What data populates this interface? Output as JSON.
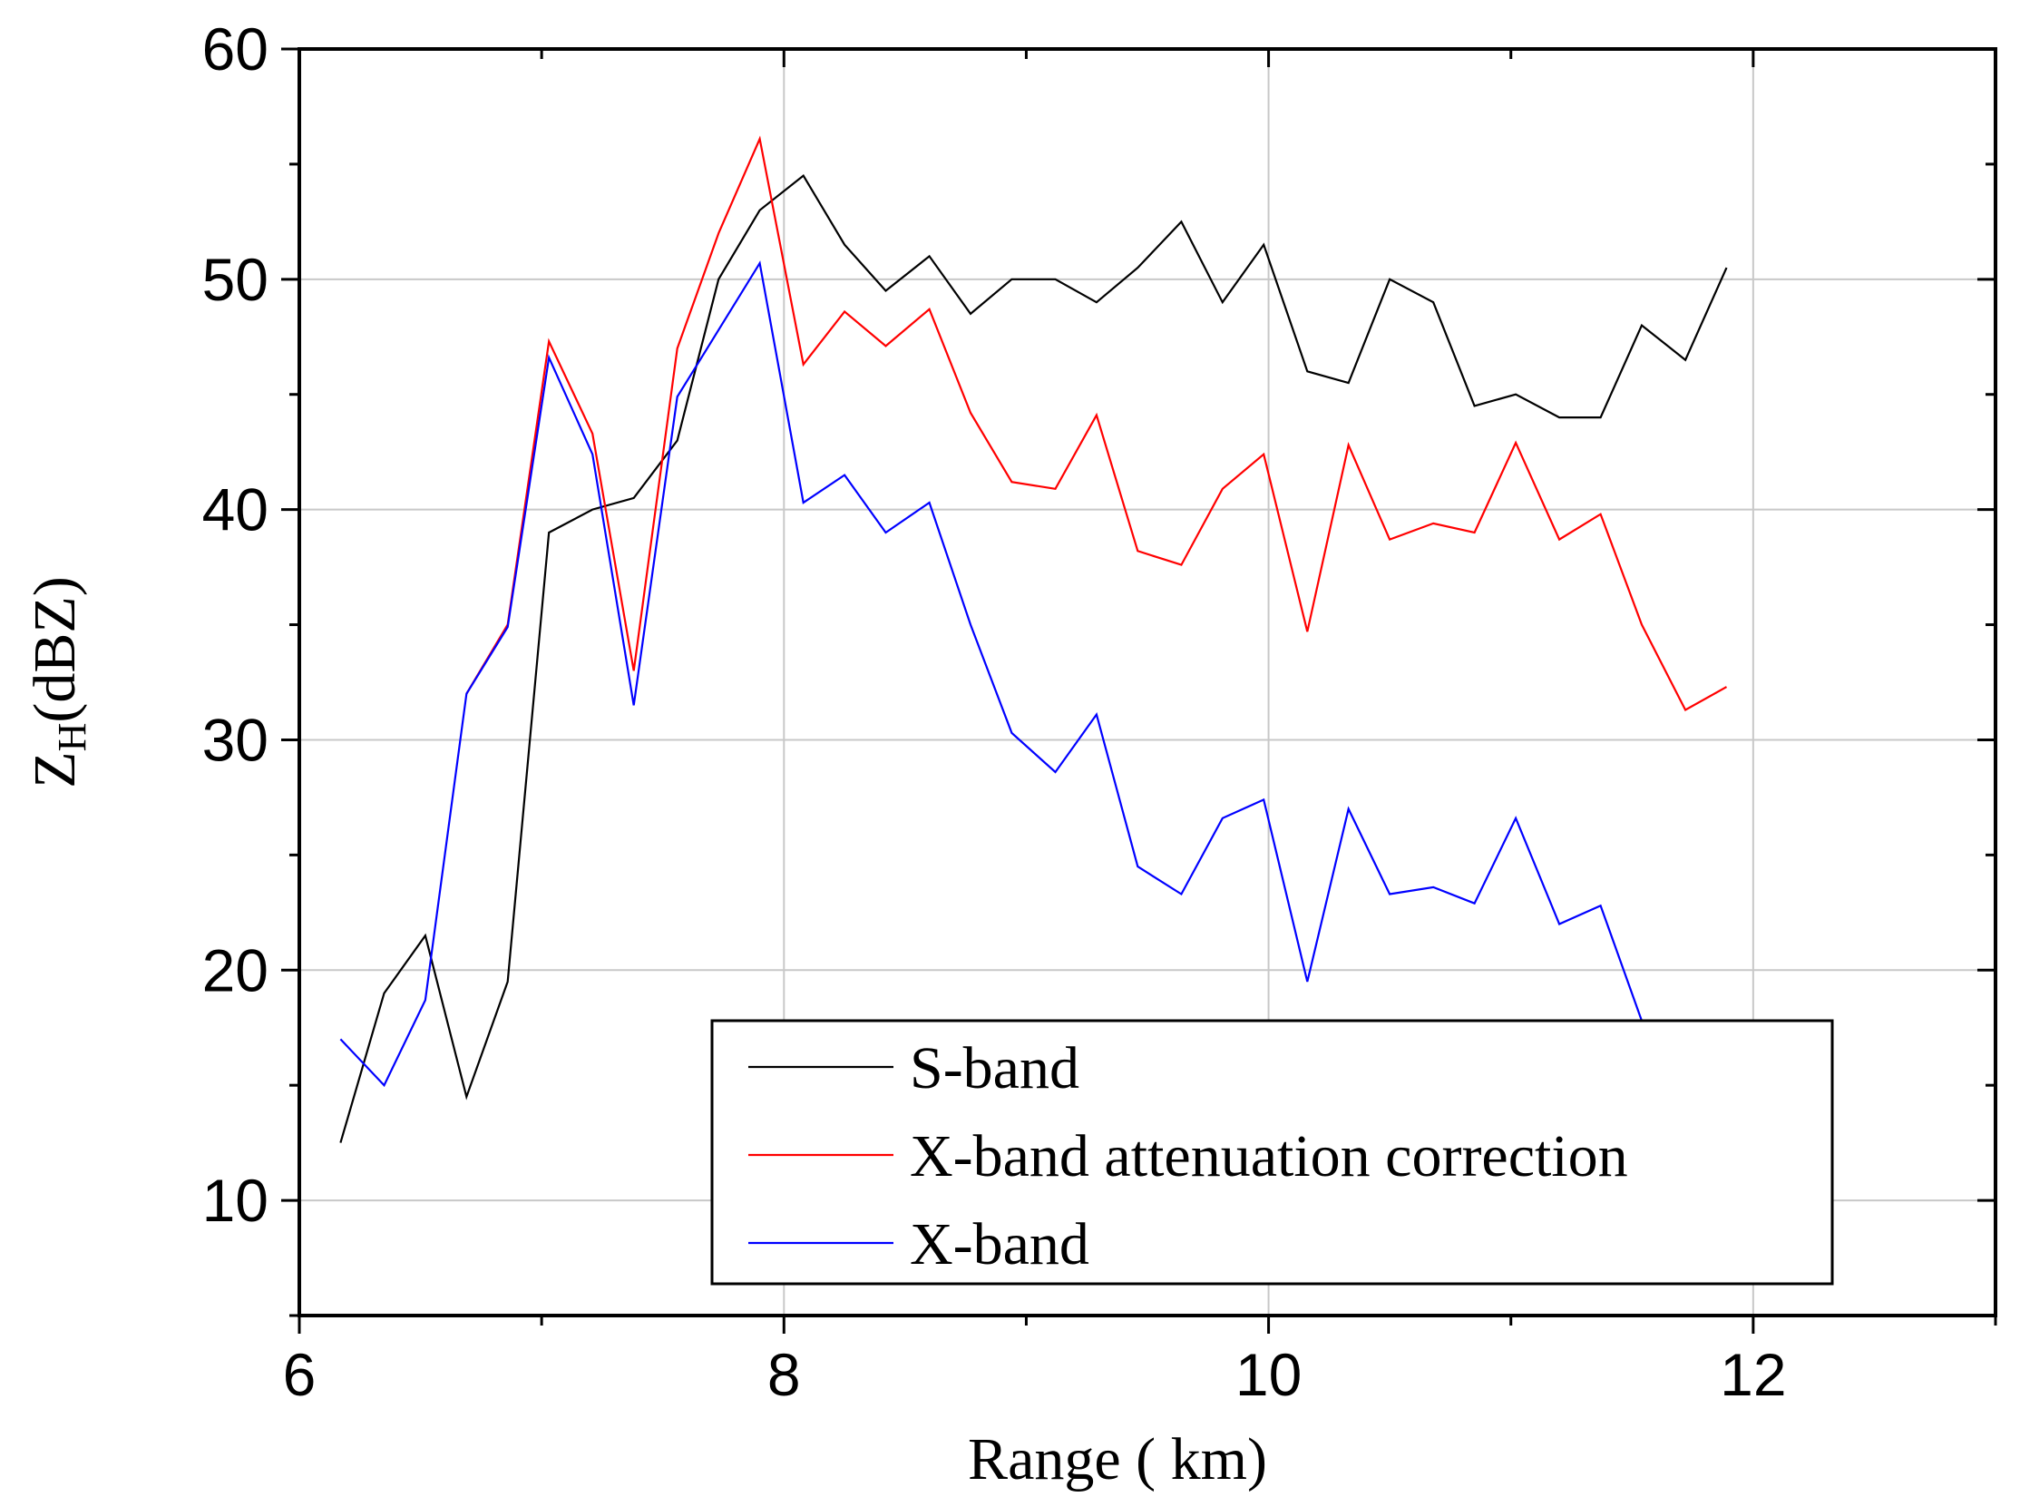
{
  "chart_data": {
    "type": "line",
    "title": "",
    "xlabel": "Range ( km)",
    "ylabel": {
      "main": "Z",
      "sub": "H",
      "unit": "(dBZ)"
    },
    "xlim": [
      6,
      13
    ],
    "ylim": [
      5,
      60
    ],
    "xticks": [
      6,
      8,
      10,
      12
    ],
    "yticks": [
      10,
      20,
      30,
      40,
      50,
      60
    ],
    "xgrid": [
      8,
      10,
      12
    ],
    "ygrid": [
      10,
      20,
      30,
      40,
      50
    ],
    "grid": true,
    "legend_position": "bottom-right",
    "series": [
      {
        "name": "S-band",
        "color": "#000000",
        "x": [
          6.17,
          6.35,
          6.52,
          6.69,
          6.86,
          7.03,
          7.21,
          7.38,
          7.56,
          7.73,
          7.9,
          8.08,
          8.25,
          8.42,
          8.6,
          8.77,
          8.94,
          9.12,
          9.29,
          9.46,
          9.64,
          9.81,
          9.98,
          10.16,
          10.33,
          10.5,
          10.68,
          10.85,
          11.02,
          11.2,
          11.37,
          11.54,
          11.72,
          11.89
        ],
        "values": [
          12.5,
          19.0,
          21.5,
          14.5,
          19.5,
          39.0,
          40.0,
          40.5,
          43.0,
          50.0,
          53.0,
          54.5,
          51.5,
          49.5,
          51.0,
          48.5,
          50.0,
          50.0,
          49.0,
          50.5,
          52.5,
          49.0,
          51.5,
          46.0,
          45.5,
          50.0,
          49.0,
          44.5,
          45.0,
          44.0,
          44.0,
          48.0,
          46.5,
          50.5
        ]
      },
      {
        "name": "X-band attenuation correction",
        "color": "#ff0000",
        "x": [
          6.69,
          6.86,
          7.03,
          7.21,
          7.38,
          7.56,
          7.73,
          7.9,
          8.08,
          8.25,
          8.42,
          8.6,
          8.77,
          8.94,
          9.12,
          9.29,
          9.46,
          9.64,
          9.81,
          9.98,
          10.16,
          10.33,
          10.5,
          10.68,
          10.85,
          11.02,
          11.2,
          11.37,
          11.54,
          11.72,
          11.89
        ],
        "values": [
          32.0,
          35.0,
          47.3,
          43.3,
          33.0,
          47.0,
          52.0,
          56.1,
          46.3,
          48.6,
          47.1,
          48.7,
          44.2,
          41.2,
          40.9,
          44.1,
          38.2,
          37.6,
          40.9,
          42.4,
          34.7,
          42.8,
          38.7,
          39.4,
          39.0,
          42.9,
          38.7,
          39.8,
          35.0,
          31.3,
          32.3
        ]
      },
      {
        "name": "X-band",
        "color": "#0000ff",
        "x": [
          6.17,
          6.35,
          6.52,
          6.69,
          6.86,
          7.03,
          7.21,
          7.38,
          7.56,
          7.73,
          7.9,
          8.08,
          8.25,
          8.42,
          8.6,
          8.77,
          8.94,
          9.12,
          9.29,
          9.46,
          9.64,
          9.81,
          9.98,
          10.16,
          10.33,
          10.5,
          10.68,
          10.85,
          11.02,
          11.2,
          11.37,
          11.54
        ],
        "values": [
          17.0,
          15.0,
          18.7,
          32.0,
          34.9,
          46.6,
          42.4,
          31.5,
          44.9,
          47.8,
          50.7,
          40.3,
          41.5,
          39.0,
          40.3,
          35.0,
          30.3,
          28.6,
          31.1,
          24.5,
          23.3,
          26.6,
          27.4,
          19.5,
          27.0,
          23.3,
          23.6,
          22.9,
          26.6,
          22.0,
          22.8,
          17.8
        ]
      }
    ]
  }
}
